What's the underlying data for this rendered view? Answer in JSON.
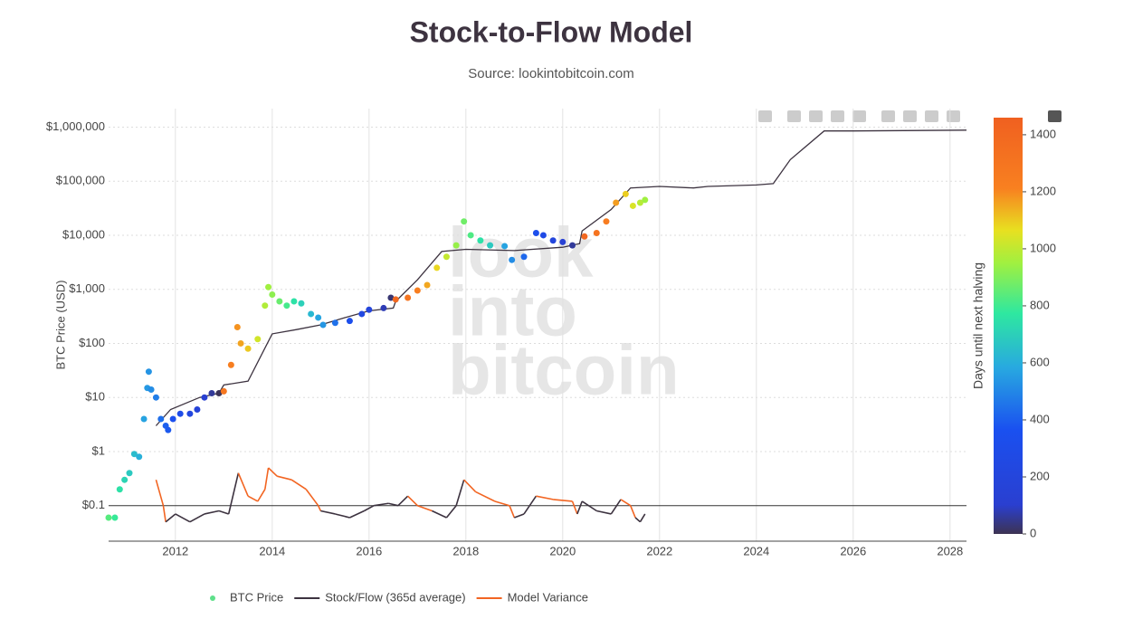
{
  "chart_data": {
    "type": "line",
    "title": "Stock-to-Flow Model",
    "subtitle": "Source: lookintobitcoin.com",
    "y_label": "BTC Price (USD)",
    "watermark": [
      "look",
      "into",
      "bitcoin"
    ],
    "log_y": true,
    "grid": true,
    "legend": "bottom",
    "xlim": [
      2010.62,
      2028.34
    ],
    "xticks": [
      2012,
      2014,
      2016,
      2018,
      2020,
      2022,
      2024,
      2026,
      2028
    ],
    "ylim": [
      0.022,
      2200000
    ],
    "yticks": [
      {
        "value": 0.1,
        "label": "$0.1"
      },
      {
        "value": 1,
        "label": "$1"
      },
      {
        "value": 10,
        "label": "$10"
      },
      {
        "value": 100,
        "label": "$100"
      },
      {
        "value": 1000,
        "label": "$1,000"
      },
      {
        "value": 10000,
        "label": "$10,000"
      },
      {
        "value": 100000,
        "label": "$100,000"
      },
      {
        "value": 1000000,
        "label": "$1,000,000"
      }
    ],
    "colorbar": {
      "title": "Days until next halving",
      "range": [
        0,
        1460
      ],
      "ticks": [
        0,
        200,
        400,
        600,
        800,
        1000,
        1200,
        1400
      ],
      "colorscale": [
        [
          0,
          "#3d3352"
        ],
        [
          0.07,
          "#2a3fd0"
        ],
        [
          0.25,
          "#1a50f0"
        ],
        [
          0.4,
          "#28a9e0"
        ],
        [
          0.53,
          "#2ee8a0"
        ],
        [
          0.65,
          "#a0f040"
        ],
        [
          0.73,
          "#e8e020"
        ],
        [
          0.83,
          "#f88020"
        ],
        [
          1,
          "#f06020"
        ]
      ]
    },
    "series": [
      {
        "name": "BTC Price",
        "type": "scatter",
        "color": "#5ee08a",
        "x": [
          2010.62,
          2010.75,
          2010.85,
          2010.95,
          2011.05,
          2011.15,
          2011.25,
          2011.35,
          2011.42,
          2011.45,
          2011.5,
          2011.6,
          2011.7,
          2011.8,
          2011.85,
          2011.95,
          2012.1,
          2012.3,
          2012.45,
          2012.6,
          2012.75,
          2012.9,
          2013.0,
          2013.15,
          2013.28,
          2013.35,
          2013.5,
          2013.7,
          2013.85,
          2013.92,
          2014.0,
          2014.15,
          2014.3,
          2014.45,
          2014.6,
          2014.8,
          2014.95,
          2015.05,
          2015.3,
          2015.6,
          2015.85,
          2016.0,
          2016.3,
          2016.45,
          2016.55,
          2016.8,
          2017.0,
          2017.2,
          2017.4,
          2017.6,
          2017.8,
          2017.96,
          2018.1,
          2018.3,
          2018.5,
          2018.8,
          2018.95,
          2019.2,
          2019.45,
          2019.6,
          2019.8,
          2020.0,
          2020.2,
          2020.45,
          2020.7,
          2020.9,
          2021.1,
          2021.3,
          2021.45,
          2021.6,
          2021.7
        ],
        "values": [
          0.06,
          0.06,
          0.2,
          0.3,
          0.4,
          0.9,
          0.8,
          4,
          15,
          30,
          14,
          10,
          4,
          3,
          2.5,
          4,
          5,
          5,
          6,
          10,
          12,
          12,
          13,
          40,
          200,
          100,
          80,
          120,
          500,
          1100,
          800,
          600,
          500,
          600,
          550,
          350,
          300,
          220,
          240,
          260,
          350,
          420,
          450,
          700,
          650,
          700,
          950,
          1200,
          2500,
          4000,
          6500,
          18000,
          10000,
          8000,
          6500,
          6300,
          3500,
          4000,
          11000,
          10000,
          8000,
          7500,
          6500,
          9500,
          11000,
          18000,
          40000,
          58000,
          35000,
          40000,
          45000
        ],
        "days": [
          836,
          788,
          752,
          715,
          679,
          642,
          606,
          569,
          544,
          533,
          515,
          478,
          442,
          405,
          387,
          350,
          296,
          223,
          168,
          113,
          58,
          4,
          1285,
          1230,
          1183,
          1157,
          1102,
          1029,
          975,
          949,
          920,
          865,
          810,
          756,
          701,
          628,
          573,
          537,
          445,
          336,
          245,
          190,
          80,
          26,
          1391,
          1299,
          1226,
          1153,
          1080,
          1007,
          934,
          876,
          825,
          752,
          679,
          569,
          515,
          423,
          332,
          277,
          204,
          131,
          58,
          1405,
          1314,
          1241,
          1168,
          1095,
          1040,
          986,
          949
        ]
      },
      {
        "name": "Stock/Flow (365d average)",
        "type": "line",
        "color": "#3d3340",
        "x": [
          2011.6,
          2011.9,
          2012.5,
          2012.9,
          2013.0,
          2013.5,
          2014.0,
          2014.5,
          2015.0,
          2015.5,
          2016.0,
          2016.5,
          2016.55,
          2017.0,
          2017.5,
          2018.0,
          2019.0,
          2020.0,
          2020.35,
          2020.4,
          2021.0,
          2021.4,
          2022.0,
          2022.7,
          2023.0,
          2024.0,
          2024.35,
          2024.7,
          2025.4,
          2026.0,
          2028.34
        ],
        "values": [
          3,
          6,
          10,
          12,
          17,
          20,
          150,
          180,
          220,
          300,
          400,
          450,
          600,
          1500,
          5000,
          5500,
          5200,
          6000,
          7000,
          12000,
          30000,
          75000,
          80000,
          75000,
          80000,
          85000,
          90000,
          250000,
          850000,
          850000,
          880000
        ]
      },
      {
        "name": "Model Variance",
        "type": "line",
        "color": "#f26522",
        "x": [
          2011.6,
          2011.75,
          2011.8,
          2012.0,
          2012.3,
          2012.6,
          2012.9,
          2013.1,
          2013.3,
          2013.5,
          2013.7,
          2013.85,
          2013.92,
          2014.1,
          2014.4,
          2014.7,
          2014.95,
          2015.0,
          2015.3,
          2015.6,
          2015.9,
          2016.1,
          2016.4,
          2016.6,
          2016.8,
          2017.0,
          2017.3,
          2017.6,
          2017.8,
          2017.96,
          2018.2,
          2018.6,
          2018.9,
          2019.0,
          2019.2,
          2019.45,
          2019.8,
          2020.2,
          2020.3,
          2020.4,
          2020.7,
          2021.0,
          2021.2,
          2021.4,
          2021.5,
          2021.6,
          2021.7
        ],
        "values": [
          0.3,
          0.1,
          0.05,
          0.07,
          0.05,
          0.07,
          0.08,
          0.07,
          0.4,
          0.15,
          0.12,
          0.2,
          0.5,
          0.35,
          0.3,
          0.2,
          0.1,
          0.08,
          0.07,
          0.06,
          0.08,
          0.1,
          0.11,
          0.1,
          0.15,
          0.1,
          0.08,
          0.06,
          0.1,
          0.3,
          0.18,
          0.12,
          0.1,
          0.06,
          0.07,
          0.15,
          0.13,
          0.12,
          0.07,
          0.12,
          0.08,
          0.07,
          0.13,
          0.1,
          0.06,
          0.05,
          0.07
        ],
        "colors": [
          "#f26522",
          "#f26522",
          "#3d3340",
          "#3d3340",
          "#3d3340",
          "#3d3340",
          "#3d3340",
          "#3d3340",
          "#f26522",
          "#f26522",
          "#f26522",
          "#f26522",
          "#f26522",
          "#f26522",
          "#f26522",
          "#f26522",
          "#f26522",
          "#3d3340",
          "#3d3340",
          "#3d3340",
          "#3d3340",
          "#3d3340",
          "#3d3340",
          "#3d3340",
          "#f26522",
          "#f26522",
          "#3d3340",
          "#3d3340",
          "#3d3340",
          "#f26522",
          "#f26522",
          "#f26522",
          "#f26522",
          "#3d3340",
          "#3d3340",
          "#f26522",
          "#f26522",
          "#f26522",
          "#3d3340",
          "#3d3340",
          "#3d3340",
          "#3d3340",
          "#f26522",
          "#f26522",
          "#3d3340",
          "#3d3340",
          "#3d3340"
        ]
      }
    ]
  }
}
